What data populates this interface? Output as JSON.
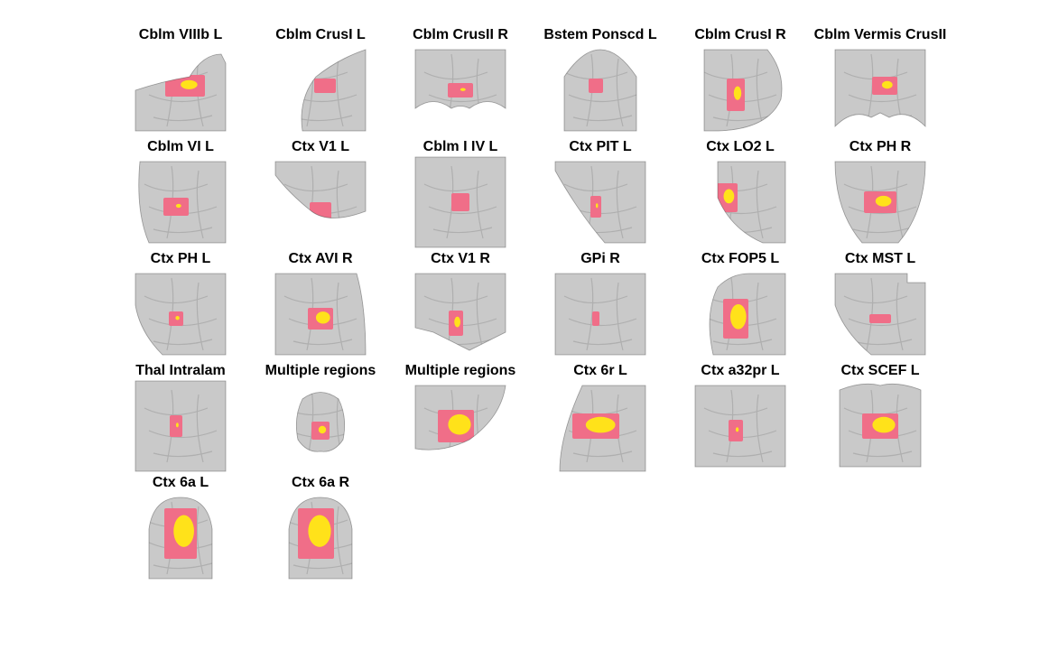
{
  "figure": {
    "colors": {
      "background": "#ffffff",
      "brain": "#c9c9c9",
      "brain_dark": "#9a9a9a",
      "blob_outer": "#f06e88",
      "blob_inner": "#ffe21a"
    },
    "panels": [
      {
        "label": "Cblm VIIIb L",
        "view": "cerebellum-edge",
        "blob": [
          0.55,
          0.45,
          0.22,
          0.12,
          0.6
        ]
      },
      {
        "label": "Cblm CrusI L",
        "view": "cerebellum-curve",
        "blob": [
          0.55,
          0.45,
          0.12,
          0.08,
          0.2
        ]
      },
      {
        "label": "Cblm CrusII R",
        "view": "cerebellum-coronal",
        "blob": [
          0.5,
          0.5,
          0.14,
          0.08,
          0.3
        ]
      },
      {
        "label": "Bstem Ponscd L",
        "view": "brainstem",
        "blob": [
          0.45,
          0.45,
          0.08,
          0.08,
          0.2
        ]
      },
      {
        "label": "Cblm CrusI R",
        "view": "cerebellum-lateral",
        "blob": [
          0.45,
          0.55,
          0.1,
          0.18,
          0.6
        ]
      },
      {
        "label": "Cblm Vermis CrusII",
        "view": "cerebellum-vermis",
        "blob": [
          0.55,
          0.45,
          0.14,
          0.1,
          0.6
        ]
      },
      {
        "label": "Cblm VI L",
        "view": "cerebellum-angled",
        "blob": [
          0.45,
          0.55,
          0.14,
          0.1,
          0.3
        ]
      },
      {
        "label": "Ctx V1 L",
        "view": "cortex-bottom",
        "blob": [
          0.5,
          0.6,
          0.12,
          0.1,
          0.2
        ]
      },
      {
        "label": "Cblm I IV L",
        "view": "cerebellum-folia",
        "blob": [
          0.5,
          0.5,
          0.1,
          0.1,
          0.2
        ]
      },
      {
        "label": "Ctx PIT L",
        "view": "cortex-wedge",
        "blob": [
          0.45,
          0.55,
          0.06,
          0.12,
          0.3
        ]
      },
      {
        "label": "Ctx LO2 L",
        "view": "cortex-lateral",
        "blob": [
          0.35,
          0.45,
          0.12,
          0.16,
          0.7
        ]
      },
      {
        "label": "Ctx PH R",
        "view": "cortex-occipital",
        "blob": [
          0.5,
          0.5,
          0.18,
          0.12,
          0.7
        ]
      },
      {
        "label": "Ctx PH L",
        "view": "cortex-medial",
        "blob": [
          0.45,
          0.55,
          0.08,
          0.08,
          0.4
        ]
      },
      {
        "label": "Ctx AVI R",
        "view": "cortex-insula",
        "blob": [
          0.5,
          0.55,
          0.14,
          0.12,
          0.8
        ]
      },
      {
        "label": "Ctx V1 R",
        "view": "cortex-calcarine",
        "blob": [
          0.45,
          0.6,
          0.08,
          0.14,
          0.6
        ]
      },
      {
        "label": "GPi R",
        "view": "basal-ganglia",
        "blob": [
          0.45,
          0.55,
          0.04,
          0.08,
          0.2
        ]
      },
      {
        "label": "Ctx FOP5 L",
        "view": "cortex-frontal-op",
        "blob": [
          0.45,
          0.55,
          0.14,
          0.22,
          0.9
        ]
      },
      {
        "label": "Ctx MST L",
        "view": "cortex-mst",
        "blob": [
          0.5,
          0.55,
          0.12,
          0.05,
          0.2
        ]
      },
      {
        "label": "Thal Intralam",
        "view": "thalamus",
        "blob": [
          0.45,
          0.5,
          0.07,
          0.12,
          0.3
        ]
      },
      {
        "label": "Multiple regions",
        "view": "whole-brain",
        "blob": [
          0.5,
          0.55,
          0.1,
          0.1,
          0.6
        ]
      },
      {
        "label": "Multiple regions",
        "view": "cortex-patch",
        "blob": [
          0.45,
          0.5,
          0.2,
          0.18,
          0.9
        ]
      },
      {
        "label": "Ctx 6r L",
        "view": "cortex-strip",
        "blob": [
          0.45,
          0.5,
          0.26,
          0.14,
          0.9
        ]
      },
      {
        "label": "Ctx a32pr L",
        "view": "cortex-medial-frontal",
        "blob": [
          0.45,
          0.55,
          0.08,
          0.12,
          0.3
        ]
      },
      {
        "label": "Ctx SCEF L",
        "view": "cortex-dorsal",
        "blob": [
          0.5,
          0.5,
          0.2,
          0.14,
          0.9
        ]
      },
      {
        "label": "Ctx 6a L",
        "view": "cortex-premotor",
        "blob": [
          0.5,
          0.45,
          0.18,
          0.28,
          0.9
        ]
      },
      {
        "label": "Ctx 6a R",
        "view": "cortex-premotor",
        "blob": [
          0.45,
          0.45,
          0.2,
          0.28,
          0.9
        ]
      }
    ]
  }
}
